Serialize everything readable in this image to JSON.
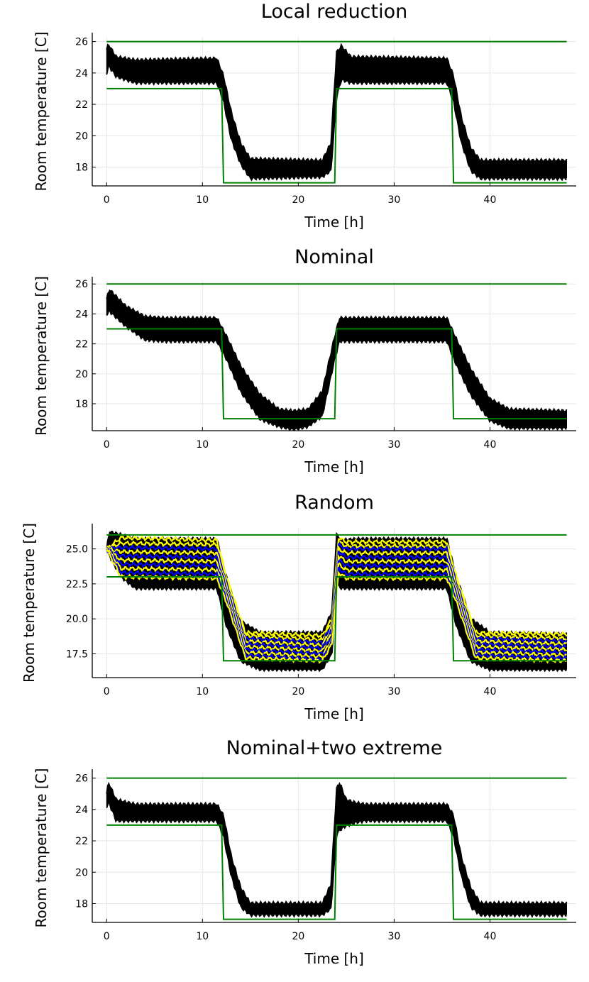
{
  "chart_data": [
    {
      "type": "line",
      "title": "Local reduction",
      "xlabel": "Time [h]",
      "ylabel": "Room temperature [C]",
      "xlim": [
        -1.5,
        49
      ],
      "ylim": [
        16.8,
        26.3
      ],
      "xticks": [
        0,
        10,
        20,
        30,
        40
      ],
      "yticks": [
        18,
        20,
        22,
        24,
        26
      ],
      "ytick_labels": [
        "18",
        "20",
        "22",
        "24",
        "26"
      ],
      "grid": true,
      "legend": "none",
      "comfort_bounds": {
        "color": "#008000",
        "upper": {
          "x": [
            0,
            48
          ],
          "y": [
            26,
            26
          ]
        },
        "lower": {
          "x": [
            0,
            12,
            12.2,
            23.8,
            24,
            36,
            36.2,
            48
          ],
          "y": [
            23,
            23,
            17,
            17,
            23,
            23,
            17,
            17
          ]
        }
      },
      "trajectory_band": {
        "color": "#000000",
        "x": [
          0,
          0.2,
          1,
          3,
          11.5,
          12.2,
          13,
          14,
          15,
          22.5,
          23.4,
          24,
          24.5,
          25.5,
          35.5,
          36.2,
          37,
          38,
          39,
          48
        ],
        "upper": [
          25.5,
          25.8,
          25.0,
          24.8,
          24.9,
          23.8,
          21.5,
          19.5,
          18.5,
          18.4,
          19.5,
          25.3,
          25.7,
          25.0,
          24.9,
          23.8,
          21.2,
          19.2,
          18.4,
          18.4
        ],
        "lower": [
          24.0,
          24.5,
          23.8,
          23.4,
          23.4,
          22.2,
          19.8,
          18.2,
          17.3,
          17.4,
          17.8,
          22.5,
          23.6,
          23.4,
          23.4,
          22.2,
          19.6,
          17.8,
          17.3,
          17.3
        ]
      }
    },
    {
      "type": "line",
      "title": "Nominal",
      "xlabel": "Time [h]",
      "ylabel": "Room temperature [C]",
      "xlim": [
        -1.5,
        49
      ],
      "ylim": [
        16.2,
        26.2
      ],
      "xticks": [
        0,
        10,
        20,
        30,
        40
      ],
      "yticks": [
        18,
        20,
        22,
        24,
        26
      ],
      "ytick_labels": [
        "18",
        "20",
        "22",
        "24",
        "26"
      ],
      "grid": true,
      "legend": "none",
      "comfort_bounds": {
        "color": "#008000",
        "upper": {
          "x": [
            0,
            48
          ],
          "y": [
            26,
            26
          ]
        },
        "lower": {
          "x": [
            0,
            12,
            12.2,
            23.8,
            24,
            36,
            36.2,
            48
          ],
          "y": [
            23,
            23,
            17,
            17,
            23,
            23,
            17,
            17
          ]
        }
      },
      "trajectory_band": {
        "color": "#000000",
        "x": [
          0,
          0.3,
          2,
          4,
          6,
          11.5,
          12.5,
          14,
          16,
          18,
          19.5,
          21,
          22.5,
          23.8,
          24.3,
          26,
          35.5,
          36.5,
          38,
          40,
          42,
          48
        ],
        "upper": [
          25.0,
          25.6,
          24.5,
          23.8,
          23.7,
          23.7,
          22.5,
          20.5,
          18.6,
          17.6,
          17.5,
          17.6,
          18.8,
          22.5,
          23.7,
          23.7,
          23.7,
          22.3,
          20.3,
          18.3,
          17.6,
          17.5
        ],
        "lower": [
          24.0,
          24.2,
          23.2,
          22.3,
          22.2,
          22.2,
          21.0,
          18.8,
          17.0,
          16.5,
          16.3,
          16.5,
          17.2,
          21.0,
          22.2,
          22.2,
          22.2,
          20.6,
          18.6,
          16.9,
          16.4,
          16.4
        ]
      }
    },
    {
      "type": "line",
      "title": "Random",
      "xlabel": "Time [h]",
      "ylabel": "Room temperature [C]",
      "xlim": [
        -1.5,
        49
      ],
      "ylim": [
        15.8,
        26.5
      ],
      "xticks": [
        0,
        10,
        20,
        30,
        40
      ],
      "yticks": [
        17.5,
        20.0,
        22.5,
        25.0
      ],
      "ytick_labels": [
        "17.5",
        "20.0",
        "22.5",
        "25.0"
      ],
      "grid": true,
      "legend": "none",
      "comfort_bounds": {
        "color": "#008000",
        "upper": {
          "x": [
            0,
            48
          ],
          "y": [
            26,
            26
          ]
        },
        "lower": {
          "x": [
            0,
            12,
            12.2,
            23.8,
            24,
            36,
            36.2,
            48
          ],
          "y": [
            23,
            23,
            17,
            17,
            23,
            23,
            17,
            17
          ]
        }
      },
      "trajectory_band": {
        "color": "#000000",
        "x": [
          0,
          0.3,
          1.5,
          3,
          11.5,
          12.5,
          14,
          16,
          22.5,
          23.5,
          24,
          24.5,
          26,
          35.5,
          36.5,
          38,
          40,
          48
        ],
        "upper": [
          25.0,
          26.2,
          26.0,
          25.7,
          25.7,
          23.0,
          19.8,
          19.0,
          19.0,
          20.5,
          26.0,
          25.6,
          25.7,
          25.7,
          23.0,
          20.0,
          19.0,
          18.9
        ],
        "lower": [
          25.0,
          24.5,
          23.0,
          22.2,
          22.2,
          19.5,
          17.0,
          16.4,
          16.4,
          17.5,
          22.5,
          22.2,
          22.2,
          22.2,
          19.5,
          17.0,
          16.4,
          16.4
        ]
      },
      "colored_traces": {
        "colors": [
          "#ffff00",
          "#0000ff"
        ],
        "x": [
          0,
          1.5,
          11.5,
          12.5,
          14.5,
          22.5,
          23.5,
          24.2,
          25,
          35.5,
          36.5,
          38.5,
          48
        ],
        "levels": [
          {
            "color": "#ffff00",
            "y": [
              25.0,
              25.8,
              25.6,
              23.0,
              19.0,
              18.8,
              20.0,
              25.8,
              25.5,
              25.5,
              23.0,
              19.0,
              18.9
            ]
          },
          {
            "color": "#ffff00",
            "y": [
              25.0,
              25.4,
              25.3,
              22.8,
              18.8,
              18.5,
              19.8,
              25.5,
              25.2,
              25.2,
              22.8,
              18.8,
              18.6
            ]
          },
          {
            "color": "#0000ff",
            "y": [
              25.0,
              25.1,
              25.0,
              22.6,
              18.6,
              18.3,
              19.6,
              25.3,
              25.0,
              25.0,
              22.6,
              18.6,
              18.4
            ]
          },
          {
            "color": "#ffff00",
            "y": [
              25.0,
              24.8,
              24.7,
              22.4,
              18.4,
              18.1,
              19.4,
              25.0,
              24.7,
              24.7,
              22.4,
              18.4,
              18.2
            ]
          },
          {
            "color": "#0000ff",
            "y": [
              25.0,
              24.5,
              24.4,
              22.2,
              18.2,
              17.9,
              19.2,
              24.8,
              24.4,
              24.4,
              22.2,
              18.2,
              18.0
            ]
          },
          {
            "color": "#ffff00",
            "y": [
              25.0,
              24.2,
              24.1,
              22.0,
              18.0,
              17.7,
              19.0,
              24.5,
              24.1,
              24.1,
              22.0,
              18.0,
              17.8
            ]
          },
          {
            "color": "#0000ff",
            "y": [
              25.0,
              23.9,
              23.8,
              21.8,
              17.8,
              17.5,
              18.8,
              24.2,
              23.8,
              23.8,
              21.8,
              17.8,
              17.6
            ]
          },
          {
            "color": "#ffff00",
            "y": [
              25.0,
              23.6,
              23.5,
              21.6,
              17.6,
              17.3,
              18.6,
              23.9,
              23.5,
              23.5,
              21.6,
              17.6,
              17.4
            ]
          },
          {
            "color": "#0000ff",
            "y": [
              25.0,
              23.3,
              23.2,
              21.4,
              17.4,
              17.1,
              18.4,
              23.6,
              23.2,
              23.2,
              21.4,
              17.4,
              17.2
            ]
          },
          {
            "color": "#ffff00",
            "y": [
              25.0,
              23.0,
              22.9,
              21.2,
              17.2,
              17.0,
              18.2,
              23.3,
              22.9,
              22.9,
              21.2,
              17.2,
              17.0
            ]
          }
        ]
      }
    },
    {
      "type": "line",
      "title": "Nominal+two extreme",
      "xlabel": "Time [h]",
      "ylabel": "Room temperature [C]",
      "xlim": [
        -1.5,
        49
      ],
      "ylim": [
        16.8,
        26.3
      ],
      "xticks": [
        0,
        10,
        20,
        30,
        40
      ],
      "yticks": [
        18,
        20,
        22,
        24,
        26
      ],
      "ytick_labels": [
        "18",
        "20",
        "22",
        "24",
        "26"
      ],
      "grid": true,
      "legend": "none",
      "comfort_bounds": {
        "color": "#008000",
        "upper": {
          "x": [
            0,
            48
          ],
          "y": [
            26,
            26
          ]
        },
        "lower": {
          "x": [
            0,
            12,
            12.2,
            23.8,
            24,
            36,
            36.2,
            48
          ],
          "y": [
            23,
            23,
            17,
            17,
            23,
            23,
            17,
            17
          ]
        }
      },
      "trajectory_band": {
        "color": "#000000",
        "x": [
          0,
          0.2,
          1,
          3,
          11.5,
          12.2,
          13,
          14,
          15,
          22.5,
          23.4,
          24,
          24.3,
          25,
          26,
          27,
          35.5,
          36.2,
          37,
          38,
          39,
          48
        ],
        "upper": [
          25.0,
          25.7,
          24.6,
          24.3,
          24.3,
          23.6,
          21.0,
          19.0,
          18.0,
          18.0,
          19.2,
          25.3,
          25.7,
          24.6,
          24.4,
          24.3,
          24.3,
          23.6,
          21.0,
          19.0,
          18.0,
          18.0
        ],
        "lower": [
          24.2,
          24.5,
          23.3,
          23.3,
          23.3,
          22.3,
          19.8,
          17.8,
          17.3,
          17.3,
          17.7,
          22.4,
          22.7,
          23.0,
          23.2,
          23.3,
          23.3,
          22.3,
          19.8,
          17.8,
          17.3,
          17.3
        ]
      }
    }
  ]
}
